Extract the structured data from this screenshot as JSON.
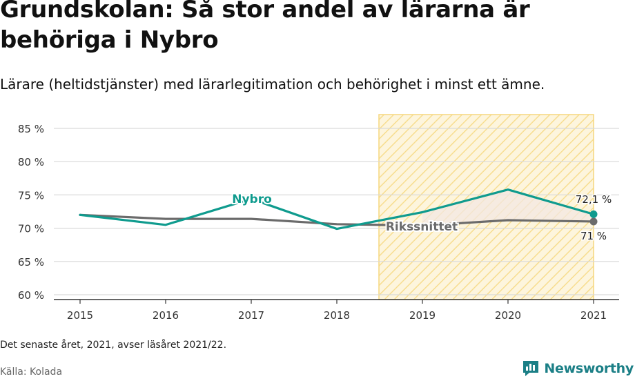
{
  "header": {
    "title": "Grundskolan: Så stor andel av lärarna är behöriga i Nybro",
    "subtitle": "Lärare (heltidstjänster) med lärarlegitimation och behörighet i minst ett ämne."
  },
  "footer": {
    "note": "Det senaste året, 2021, avser läsåret 2021/22.",
    "source": "Källa: Kolada",
    "brand": "Newsworthy"
  },
  "colors": {
    "nybro": "#0f9b8e",
    "riket": "#6b6b6b",
    "highlight_fill": "#fbf1d3",
    "highlight_stroke": "#f5d77e"
  },
  "icons": {
    "brand_logo": "bar-chart-bubble-icon"
  },
  "chart_data": {
    "type": "line",
    "x": [
      2015,
      2016,
      2017,
      2018,
      2019,
      2020,
      2021
    ],
    "series": [
      {
        "name": "Nybro",
        "values": [
          72.0,
          70.5,
          74.4,
          69.9,
          72.4,
          75.8,
          72.1
        ]
      },
      {
        "name": "Rikssnittet",
        "values": [
          72.0,
          71.4,
          71.4,
          70.6,
          70.4,
          71.2,
          71.0
        ]
      }
    ],
    "ylim": [
      60,
      87
    ],
    "y_ticks": [
      60,
      65,
      70,
      75,
      80,
      85
    ],
    "y_tick_labels": [
      "60 %",
      "65 %",
      "70 %",
      "75 %",
      "80 %",
      "85 %"
    ],
    "x_tick_labels": [
      "2015",
      "2016",
      "2017",
      "2018",
      "2019",
      "2020",
      "2021"
    ],
    "highlight_range": [
      2018.5,
      2021
    ],
    "end_labels": {
      "nybro": "72,1 %",
      "riket": "71 %"
    },
    "grid": true
  }
}
